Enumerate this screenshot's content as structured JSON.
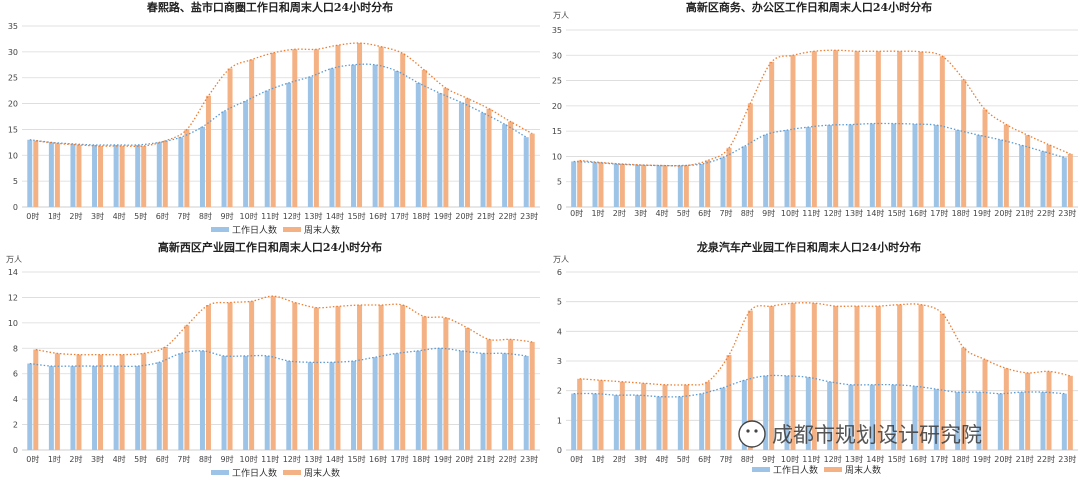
{
  "watermark": {
    "text": "成都市规划设计研究院"
  },
  "colors": {
    "workday": "#9dc3e6",
    "weekend": "#f4b183",
    "workday_trend": "#5b9bd5",
    "weekend_trend": "#ed7d31"
  },
  "chart_data": [
    {
      "type": "bar",
      "title": "春熙路、盐市口商圈工作日和周末人口24小时分布",
      "unit": "",
      "ylim": [
        0,
        35
      ],
      "yticks": [
        0,
        5,
        10,
        15,
        20,
        25,
        30,
        35
      ],
      "categories": [
        "0时",
        "1时",
        "2时",
        "3时",
        "4时",
        "5时",
        "6时",
        "7时",
        "8时",
        "9时",
        "10时",
        "11时",
        "12时",
        "13时",
        "14时",
        "15时",
        "16时",
        "17时",
        "18时",
        "19时",
        "20时",
        "21时",
        "22时",
        "23时"
      ],
      "series": [
        {
          "name": "工作日人数",
          "values": [
            13,
            12.5,
            12.2,
            12,
            12,
            12,
            12.5,
            13.5,
            15.5,
            18.5,
            20.5,
            22.5,
            24,
            25.2,
            26.8,
            27.5,
            27.5,
            26.3,
            24,
            22,
            20.2,
            18.2,
            16,
            13.5
          ]
        },
        {
          "name": "周末人数",
          "values": [
            12.8,
            12.3,
            12,
            11.8,
            11.8,
            11.8,
            12.8,
            15,
            21.5,
            26.8,
            28.5,
            29.8,
            30.5,
            30.5,
            31.3,
            31.7,
            31,
            29.7,
            26.5,
            23,
            21,
            19,
            16.5,
            14.2
          ]
        }
      ],
      "trend_lines": true,
      "legend": "bottom"
    },
    {
      "type": "bar",
      "title": "高新区商务、办公区工作日和周末人口24小时分布",
      "unit": "万人",
      "ylim": [
        0,
        35
      ],
      "yticks": [
        0,
        5,
        10,
        15,
        20,
        25,
        30,
        35
      ],
      "categories": [
        "0时",
        "1时",
        "2时",
        "3时",
        "4时",
        "5时",
        "6时",
        "7时",
        "8时",
        "9时",
        "10时",
        "11时",
        "12时",
        "13时",
        "14时",
        "15时",
        "16时",
        "17时",
        "18时",
        "19时",
        "20时",
        "21时",
        "22时",
        "23时"
      ],
      "series": [
        {
          "name": "工作日人数",
          "values": [
            9,
            8.8,
            8.5,
            8.3,
            8.2,
            8.2,
            8.5,
            9.8,
            12,
            14.3,
            15.2,
            15.8,
            16.2,
            16.3,
            16.5,
            16.5,
            16.4,
            16.2,
            15.2,
            14.2,
            13.3,
            12.2,
            11,
            9.8
          ]
        },
        {
          "name": "周末人数",
          "values": [
            9.2,
            8.8,
            8.5,
            8.3,
            8.2,
            8.2,
            9.2,
            11.7,
            20.5,
            28.7,
            30,
            30.8,
            31,
            30.8,
            30.8,
            30.8,
            30.7,
            29.8,
            25.2,
            19.3,
            16.3,
            14.2,
            12.3,
            10.5
          ]
        }
      ],
      "trend_lines": true,
      "legend": "none"
    },
    {
      "type": "bar",
      "title": "高新西区产业园工作日和周末人口24小时分布",
      "unit": "万人",
      "ylim": [
        0,
        14
      ],
      "yticks": [
        0,
        2,
        4,
        6,
        8,
        10,
        12,
        14
      ],
      "categories": [
        "0时",
        "1时",
        "2时",
        "3时",
        "4时",
        "5时",
        "6时",
        "7时",
        "8时",
        "9时",
        "10时",
        "11时",
        "12时",
        "13时",
        "14时",
        "15时",
        "16时",
        "17时",
        "18时",
        "19时",
        "20时",
        "21时",
        "22时",
        "23时"
      ],
      "series": [
        {
          "name": "工作日人数",
          "values": [
            6.8,
            6.6,
            6.6,
            6.6,
            6.6,
            6.6,
            6.9,
            7.6,
            7.8,
            7.4,
            7.4,
            7.4,
            7,
            6.9,
            6.9,
            7,
            7.3,
            7.6,
            7.8,
            8,
            7.8,
            7.6,
            7.6,
            7.4
          ]
        },
        {
          "name": "周末人数",
          "values": [
            7.9,
            7.6,
            7.5,
            7.5,
            7.5,
            7.6,
            8.1,
            9.8,
            11.4,
            11.6,
            11.7,
            12.1,
            11.6,
            11.2,
            11.3,
            11.4,
            11.4,
            11.4,
            10.5,
            10.4,
            9.6,
            8.7,
            8.7,
            8.5
          ]
        }
      ],
      "trend_lines": true,
      "legend": "bottom"
    },
    {
      "type": "bar",
      "title": "龙泉汽车产业园工作日和周末人口24小时分布",
      "unit": "万人",
      "ylim": [
        0,
        6
      ],
      "yticks": [
        0,
        1,
        2,
        3,
        4,
        5,
        6
      ],
      "categories": [
        "0时",
        "1时",
        "2时",
        "3时",
        "4时",
        "5时",
        "6时",
        "7时",
        "8时",
        "9时",
        "10时",
        "11时",
        "12时",
        "13时",
        "14时",
        "15时",
        "16时",
        "17时",
        "18时",
        "19时",
        "20时",
        "21时",
        "22时",
        "23时"
      ],
      "series": [
        {
          "name": "工作日人数",
          "values": [
            1.9,
            1.9,
            1.85,
            1.85,
            1.8,
            1.8,
            1.9,
            2.1,
            2.35,
            2.5,
            2.5,
            2.45,
            2.3,
            2.2,
            2.2,
            2.2,
            2.15,
            2.05,
            1.95,
            1.95,
            1.9,
            1.95,
            1.95,
            1.9
          ]
        },
        {
          "name": "周末人数",
          "values": [
            2.4,
            2.35,
            2.3,
            2.25,
            2.2,
            2.2,
            2.3,
            3.2,
            4.7,
            4.85,
            4.95,
            4.95,
            4.85,
            4.85,
            4.85,
            4.9,
            4.9,
            4.6,
            3.45,
            3.05,
            2.75,
            2.6,
            2.65,
            2.5
          ]
        }
      ],
      "trend_lines": true,
      "legend": "bottom"
    }
  ]
}
